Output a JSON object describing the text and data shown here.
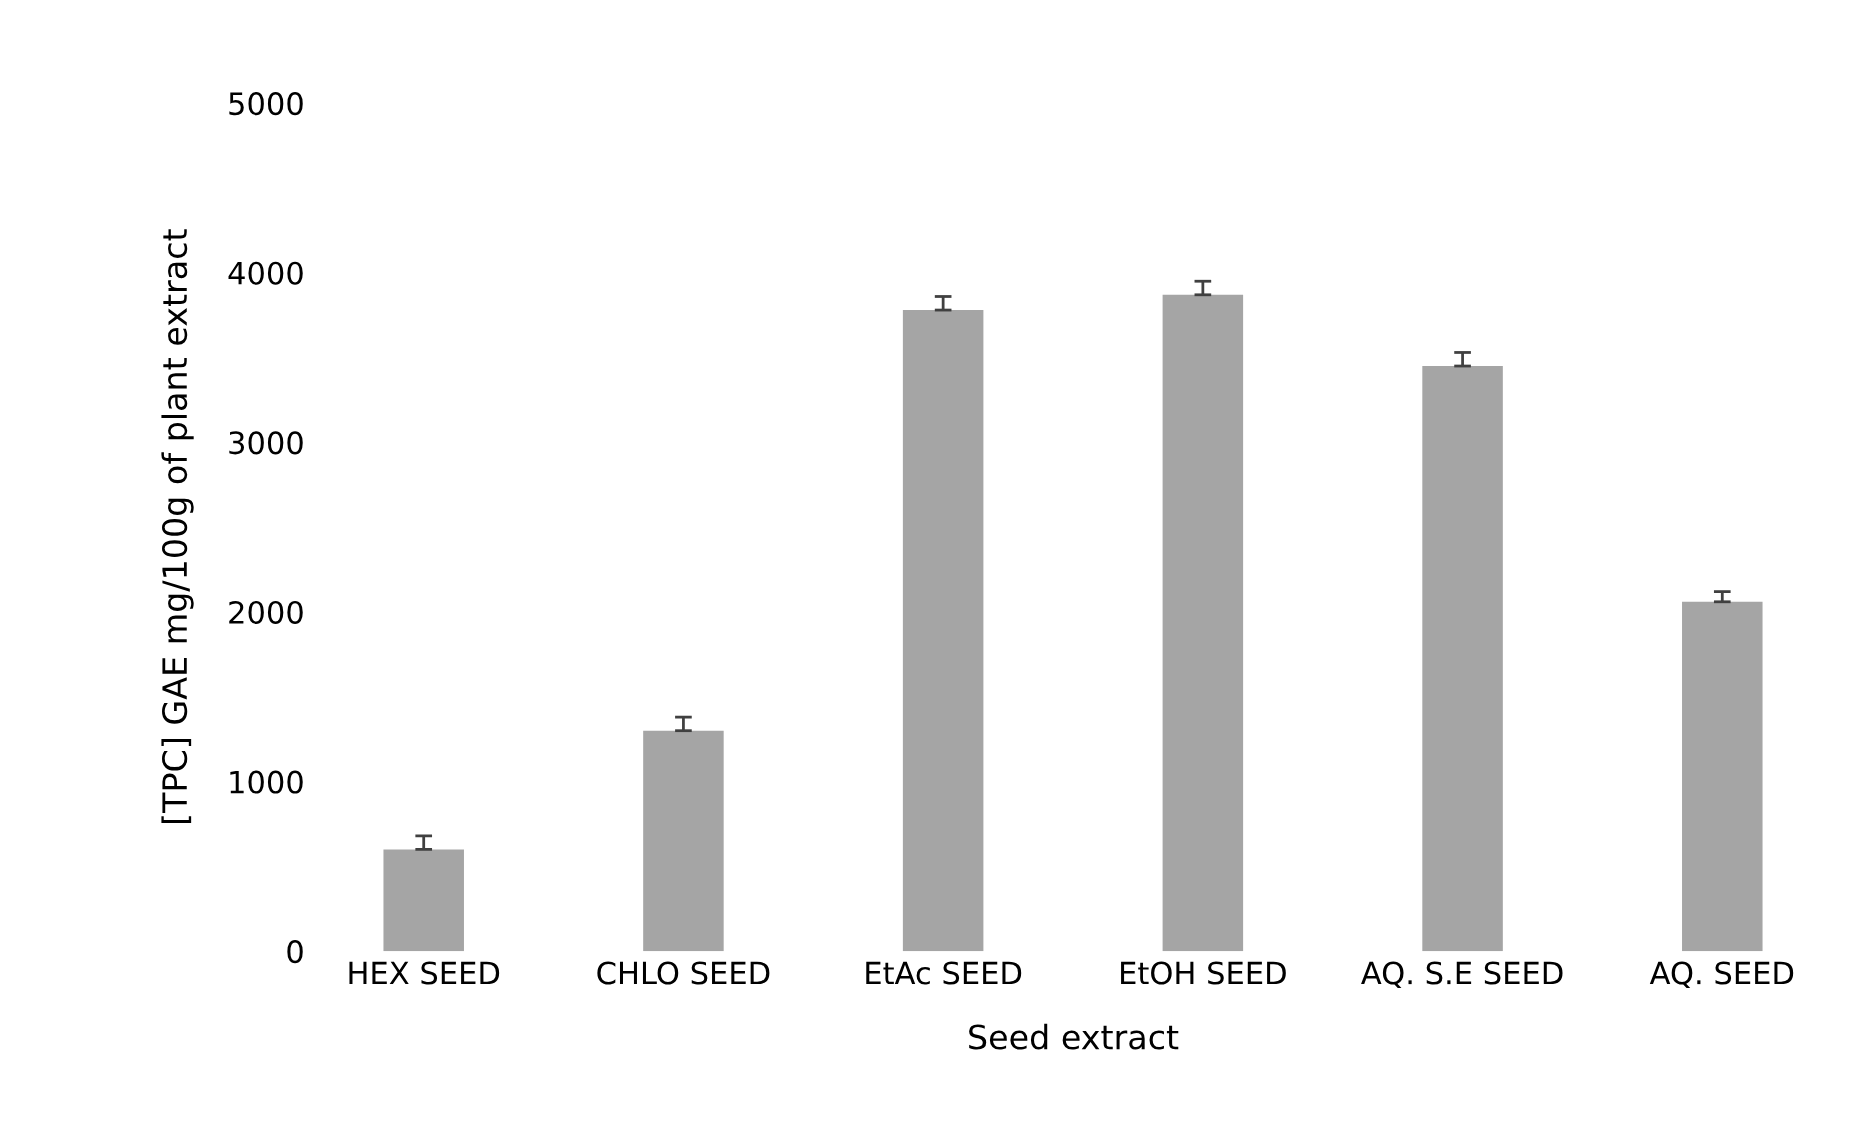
{
  "chart_data": {
    "type": "bar",
    "xlabel": "Seed extract",
    "ylabel": "[TPC] GAE mg/100g of plant extract",
    "categories": [
      "HEX SEED",
      "CHLO SEED",
      "EtAc SEED",
      "EtOH SEED",
      "AQ. S.E SEED",
      "AQ. SEED"
    ],
    "values": [
      600,
      1300,
      3780,
      3870,
      3450,
      2060
    ],
    "errors": [
      80,
      80,
      80,
      80,
      80,
      60
    ],
    "color": "#a5a5a5",
    "ylim": [
      0,
      5000
    ],
    "yticks": [
      0,
      1000,
      2000,
      3000,
      4000,
      5000
    ],
    "grid": false
  }
}
